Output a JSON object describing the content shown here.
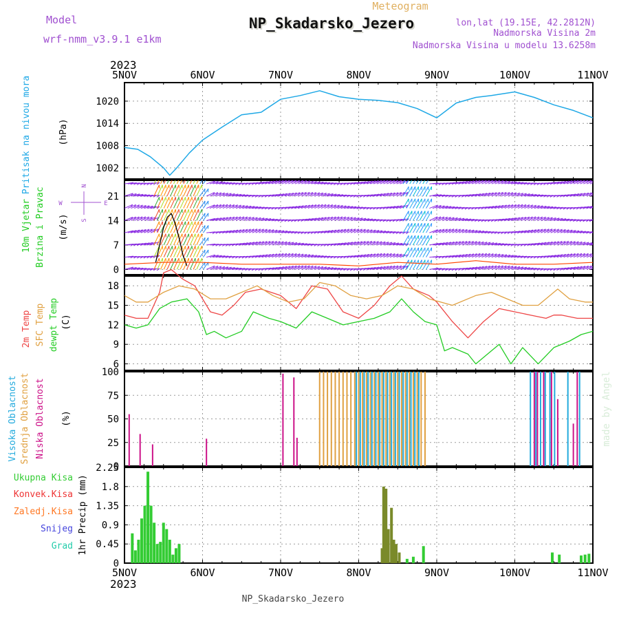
{
  "header": {
    "model_label": "Model",
    "model_value": "wrf-nmm_v3.9.1 e1km",
    "subtitle": "Meteogram",
    "title": "NP_Skadarsko_Jezero",
    "lonlat": "lon,lat (19.15E, 42.2812N)",
    "alt_station": "Nadmorska Visina 2m",
    "alt_model": "Nadmorska Visina u modelu 13.6258m",
    "year_top": "2023",
    "year_bottom": "2023",
    "footer": "NP_Skadarsko_Jezero",
    "credit": "made by Angel"
  },
  "time_axis": {
    "labels": [
      "5NOV",
      "6NOV",
      "7NOV",
      "8NOV",
      "9NOV",
      "10NOV",
      "11NOV"
    ],
    "range_days": [
      0,
      6
    ]
  },
  "colors": {
    "pressure": "#1ea8e6",
    "temp2m": "#ee4444",
    "sfc": "#e0a040",
    "dewpt": "#22cc22",
    "wind_arrows": "#8a2be2",
    "wind_speed": "#000000",
    "gust": "#ff4400",
    "cloud_high": "#22aadd",
    "cloud_mid": "#e0a040",
    "cloud_low": "#cc1188",
    "precip_total": "#33cc33",
    "precip_conv": "#ee3333",
    "precip_frozen": "#ff7722",
    "snow": "#4444dd",
    "graupel": "#22ccaa",
    "label_purple": "#a050d0"
  },
  "chart_data": [
    {
      "type": "line",
      "panel": "pressure",
      "label1": "Pritisak na nivou mora",
      "label2": "(hPa)",
      "yticks": [
        1002,
        1008,
        1014,
        1020
      ],
      "ylim": [
        999,
        1025
      ],
      "series": [
        {
          "name": "Pritisak na nivou mora",
          "x": [
            0,
            0.17,
            0.33,
            0.5,
            0.58,
            0.67,
            0.83,
            1.0,
            1.25,
            1.5,
            1.75,
            2.0,
            2.25,
            2.5,
            2.75,
            3.0,
            3.25,
            3.5,
            3.75,
            4.0,
            4.25,
            4.5,
            4.7,
            5.0,
            5.25,
            5.5,
            5.75,
            6.0
          ],
          "y": [
            1007.5,
            1007,
            1005,
            1002,
            1000,
            1002,
            1006,
            1009.5,
            1013,
            1016.3,
            1017,
            1020.5,
            1021.5,
            1022.8,
            1021.2,
            1020.5,
            1020.2,
            1019.6,
            1018,
            1015.5,
            1019.5,
            1021,
            1021.5,
            1022.5,
            1021,
            1019,
            1017.5,
            1015.5
          ]
        }
      ]
    },
    {
      "type": "line",
      "panel": "wind",
      "label1": "10m Vjetar",
      "label2": "Brzina i Pravac",
      "label3": "(m/s)",
      "compass": [
        "N",
        "W",
        "E",
        "S"
      ],
      "yticks": [
        0,
        7,
        14,
        21
      ],
      "ylim": [
        -1.5,
        25.5
      ],
      "series": [
        {
          "name": "speed",
          "x": [
            0.4,
            0.45,
            0.5,
            0.55,
            0.6,
            0.65,
            0.7,
            0.75,
            0.8
          ],
          "y": [
            2,
            7,
            12,
            15,
            16,
            13,
            9,
            4,
            1
          ]
        },
        {
          "name": "gust",
          "x": [
            0,
            0.5,
            1,
            1.5,
            2,
            2.5,
            3,
            3.5,
            4,
            4.5,
            5,
            5.5,
            6
          ],
          "y": [
            1.5,
            2,
            2,
            1.5,
            1.5,
            1.5,
            1,
            2,
            1.5,
            2.5,
            1.5,
            1.5,
            2
          ]
        }
      ]
    },
    {
      "type": "line",
      "panel": "temperature",
      "label1": "2m Temp",
      "label2": "SFC Temp",
      "label3": "dewpt Temp",
      "label4": "(C)",
      "yticks": [
        6,
        9,
        12,
        15,
        18
      ],
      "ylim": [
        5,
        19.5
      ],
      "series": [
        {
          "name": "2m Temp",
          "x": [
            0,
            0.15,
            0.3,
            0.45,
            0.5,
            0.6,
            0.75,
            0.9,
            1.1,
            1.25,
            1.4,
            1.55,
            1.75,
            2.0,
            2.2,
            2.4,
            2.6,
            2.8,
            3.0,
            3.2,
            3.4,
            3.55,
            3.7,
            3.9,
            4.0,
            4.2,
            4.4,
            4.6,
            4.8,
            5.0,
            5.2,
            5.4,
            5.5,
            5.6,
            5.8,
            6.0
          ],
          "y": [
            13.5,
            13,
            13,
            17,
            20,
            20.5,
            19,
            18,
            14,
            13.5,
            15,
            17,
            17.5,
            16.5,
            14.5,
            18,
            17.5,
            14,
            13,
            15,
            18,
            19.5,
            17.5,
            16.5,
            15.5,
            12.5,
            10,
            12.5,
            14.5,
            14,
            13.5,
            13,
            13.5,
            13.5,
            13,
            13
          ]
        },
        {
          "name": "SFC Temp",
          "x": [
            0,
            0.15,
            0.3,
            0.5,
            0.7,
            0.9,
            1.1,
            1.3,
            1.5,
            1.7,
            1.9,
            2.1,
            2.3,
            2.5,
            2.7,
            2.9,
            3.1,
            3.3,
            3.5,
            3.7,
            3.9,
            4.2,
            4.5,
            4.7,
            4.9,
            5.1,
            5.3,
            5.55,
            5.7,
            5.9,
            6.0
          ],
          "y": [
            16.5,
            15.5,
            15.5,
            17,
            18,
            17.5,
            16,
            16,
            17,
            18,
            16.5,
            15.5,
            16,
            18.5,
            18,
            16.5,
            16,
            16.5,
            18,
            17.5,
            16,
            15,
            16.5,
            17,
            16,
            15,
            15,
            17.5,
            16,
            15.5,
            15.5
          ]
        },
        {
          "name": "dewpt Temp",
          "x": [
            0,
            0.15,
            0.3,
            0.45,
            0.6,
            0.8,
            0.95,
            1.05,
            1.15,
            1.3,
            1.5,
            1.65,
            1.85,
            2.0,
            2.2,
            2.4,
            2.6,
            2.8,
            3.0,
            3.2,
            3.4,
            3.55,
            3.7,
            3.85,
            4.0,
            4.1,
            4.2,
            4.4,
            4.5,
            4.6,
            4.8,
            4.95,
            5.1,
            5.3,
            5.5,
            5.7,
            5.85,
            6.0
          ],
          "y": [
            12,
            11.5,
            12,
            14.5,
            15.5,
            16,
            14,
            10.5,
            11,
            10,
            11,
            14,
            13,
            12.5,
            11.5,
            14,
            13,
            12,
            12.5,
            13,
            14,
            16,
            14,
            12.5,
            12,
            8,
            8.5,
            7.5,
            6,
            7,
            9,
            6,
            8.5,
            6,
            8.5,
            9.5,
            10.5,
            11
          ]
        }
      ]
    },
    {
      "type": "bar",
      "panel": "clouds",
      "label1": "Visoka Oblacnost",
      "label2": "Srednja Oblacnost",
      "label3": "Niska Oblacnost",
      "label4": "(%)",
      "yticks": [
        0,
        25,
        50,
        75,
        100
      ],
      "ylim": [
        0,
        100
      ],
      "series": [
        {
          "name": "Niska Oblacnost",
          "x": [
            0.06,
            0.2,
            0.36,
            1.05,
            2.03,
            2.17,
            2.21,
            5.25,
            5.29,
            5.37,
            5.47,
            5.55,
            5.75,
            5.8
          ],
          "y": [
            55,
            34,
            23,
            29,
            98,
            94,
            30,
            100,
            100,
            100,
            100,
            71,
            45,
            100
          ]
        },
        {
          "name": "Srednja Oblacnost",
          "x": [
            2.5,
            2.55,
            2.6,
            2.65,
            2.7,
            2.75,
            2.8,
            2.85,
            2.9,
            2.95,
            3.0,
            3.05,
            3.1,
            3.15,
            3.2,
            3.25,
            3.3,
            3.35,
            3.4,
            3.45,
            3.5,
            3.55,
            3.6,
            3.65,
            3.7,
            3.75,
            3.8,
            3.85
          ],
          "y": [
            100,
            100,
            100,
            100,
            100,
            100,
            100,
            100,
            100,
            100,
            100,
            100,
            100,
            100,
            100,
            100,
            100,
            100,
            100,
            100,
            100,
            100,
            100,
            100,
            100,
            100,
            100,
            100
          ]
        },
        {
          "name": "Visoka Oblacnost",
          "x": [
            2.97,
            3.02,
            3.07,
            3.12,
            3.17,
            3.22,
            3.27,
            3.32,
            3.37,
            3.42,
            3.47,
            3.52,
            3.57,
            3.62,
            3.67,
            3.72,
            3.77,
            5.2,
            5.27,
            5.33,
            5.39,
            5.45,
            5.51,
            5.68,
            5.83
          ],
          "y": [
            100,
            100,
            100,
            100,
            100,
            100,
            100,
            100,
            100,
            100,
            100,
            100,
            100,
            100,
            100,
            100,
            100,
            100,
            100,
            100,
            100,
            100,
            100,
            100,
            100
          ]
        }
      ]
    },
    {
      "type": "bar",
      "panel": "precip",
      "legend": [
        "Ukupna Kisa",
        "Konvek.Kisa",
        "Zaledj.Kisa",
        "Snijeg",
        "Grad"
      ],
      "ylabel": "1hr Precip (mm)",
      "yticks": [
        "0",
        "0.45",
        "0.9",
        "1.35",
        "1.8",
        "2.25"
      ],
      "ylim": [
        0,
        2.25
      ],
      "series": [
        {
          "name": "Ukupna Kisa",
          "x": [
            0.1,
            0.14,
            0.18,
            0.22,
            0.26,
            0.3,
            0.34,
            0.38,
            0.42,
            0.46,
            0.5,
            0.54,
            0.58,
            0.62,
            0.66,
            0.7,
            3.62,
            3.7,
            3.83,
            5.48,
            5.57,
            5.85,
            5.9,
            5.95
          ],
          "y": [
            0.7,
            0.3,
            0.55,
            1.05,
            1.35,
            2.15,
            1.35,
            0.95,
            0.45,
            0.5,
            0.95,
            0.8,
            0.55,
            0.2,
            0.35,
            0.45,
            0.1,
            0.15,
            0.4,
            0.25,
            0.2,
            0.18,
            0.2,
            0.22
          ]
        },
        {
          "name": "Konvek.Kisa",
          "x": [
            3.3,
            3.32,
            3.35,
            3.38,
            3.42,
            3.45,
            3.48,
            3.52
          ],
          "y": [
            0.35,
            1.8,
            1.75,
            0.8,
            1.3,
            0.55,
            0.45,
            0.25
          ]
        }
      ]
    }
  ]
}
